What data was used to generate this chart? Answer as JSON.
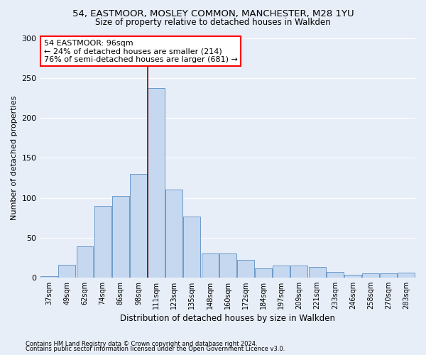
{
  "title1": "54, EASTMOOR, MOSLEY COMMON, MANCHESTER, M28 1YU",
  "title2": "Size of property relative to detached houses in Walkden",
  "xlabel": "Distribution of detached houses by size in Walkden",
  "ylabel": "Number of detached properties",
  "categories": [
    "37sqm",
    "49sqm",
    "62sqm",
    "74sqm",
    "86sqm",
    "98sqm",
    "111sqm",
    "123sqm",
    "135sqm",
    "148sqm",
    "160sqm",
    "172sqm",
    "184sqm",
    "197sqm",
    "209sqm",
    "221sqm",
    "233sqm",
    "246sqm",
    "258sqm",
    "270sqm",
    "283sqm"
  ],
  "values": [
    2,
    16,
    39,
    90,
    102,
    130,
    238,
    110,
    76,
    30,
    30,
    22,
    11,
    15,
    15,
    13,
    7,
    3,
    5,
    5,
    6
  ],
  "bar_color": "#c5d8f0",
  "bar_edgecolor": "#5a8fc2",
  "bg_color": "#e8eef8",
  "annotation_text": "54 EASTMOOR: 96sqm\n← 24% of detached houses are smaller (214)\n76% of semi-detached houses are larger (681) →",
  "vline_x_index": 5.5,
  "ylim": [
    0,
    300
  ],
  "footnote1": "Contains HM Land Registry data © Crown copyright and database right 2024.",
  "footnote2": "Contains public sector information licensed under the Open Government Licence v3.0."
}
